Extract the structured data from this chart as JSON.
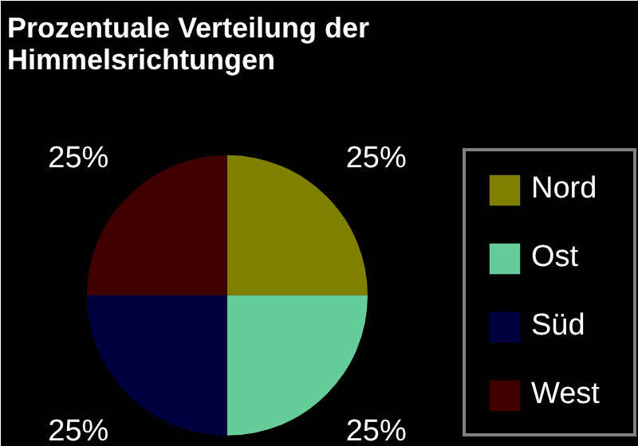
{
  "chart_data": {
    "type": "pie",
    "title": "Prozentuale Verteilung der\nHimmelsrichtungen",
    "categories": [
      "Nord",
      "Ost",
      "Süd",
      "West"
    ],
    "values": [
      25,
      25,
      25,
      25
    ],
    "colors": [
      "#808000",
      "#66cc99",
      "#000040",
      "#400000"
    ],
    "value_labels": [
      "25%",
      "25%",
      "25%",
      "25%"
    ],
    "legend": "right"
  }
}
